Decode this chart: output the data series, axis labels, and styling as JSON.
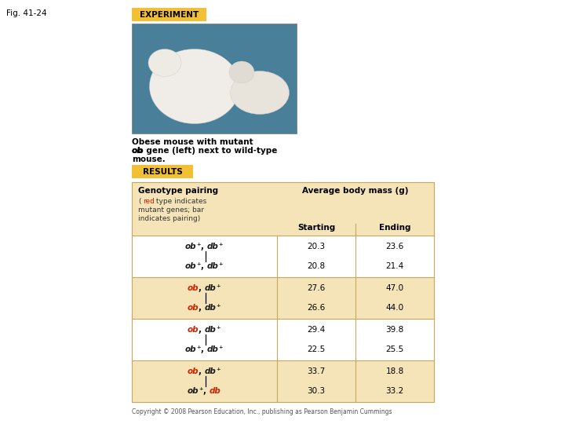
{
  "fig_label": "Fig. 41-24",
  "experiment_label": "EXPERIMENT",
  "results_label": "RESULTS",
  "caption_line1": "Obese mouse with mutant",
  "caption_line2": "ob gene (left) next to wild-type",
  "caption_line3": "mouse.",
  "label_bg_color": "#F2C035",
  "table_bg_light": "#FDF0D0",
  "table_bg_dark": "#F5E4B8",
  "table_border_color": "#C8A860",
  "white_row": "#FFFFFF",
  "copyright": "Copyright © 2008 Pearson Education, Inc., publishing as Pearson Benjamin Cummings",
  "col_header_starting": "Starting",
  "col_header_ending": "Ending",
  "col_header_genotype": "Genotype pairing",
  "col_header_avg": "Average body mass (g)",
  "col_note_1": "(red  type indicates",
  "col_note_2": "mutant genes; bar",
  "col_note_3": "indicates pairing)",
  "img_bg_color": "#4A7F9A",
  "rows": [
    {
      "top_parts": [
        {
          "text": "ob",
          "color": "#1a1a1a",
          "italic": true
        },
        {
          "text": "⁺",
          "color": "#1a1a1a",
          "italic": false
        },
        {
          "text": ", ",
          "color": "#1a1a1a",
          "italic": false
        },
        {
          "text": "db",
          "color": "#1a1a1a",
          "italic": true
        },
        {
          "text": "⁺",
          "color": "#1a1a1a",
          "italic": false
        }
      ],
      "bot_parts": [
        {
          "text": "ob",
          "color": "#1a1a1a",
          "italic": true
        },
        {
          "text": "⁺",
          "color": "#1a1a1a",
          "italic": false
        },
        {
          "text": ", ",
          "color": "#1a1a1a",
          "italic": false
        },
        {
          "text": "db",
          "color": "#1a1a1a",
          "italic": true
        },
        {
          "text": "⁺",
          "color": "#1a1a1a",
          "italic": false
        }
      ],
      "s_top": "20.3",
      "e_top": "23.6",
      "s_bot": "20.8",
      "e_bot": "21.4",
      "bg": "white"
    },
    {
      "top_parts": [
        {
          "text": "ob",
          "color": "#CC2200",
          "italic": true
        },
        {
          "text": ", ",
          "color": "#1a1a1a",
          "italic": false
        },
        {
          "text": "db",
          "color": "#1a1a1a",
          "italic": true
        },
        {
          "text": "⁺",
          "color": "#1a1a1a",
          "italic": false
        }
      ],
      "bot_parts": [
        {
          "text": "ob",
          "color": "#CC2200",
          "italic": true
        },
        {
          "text": ", ",
          "color": "#1a1a1a",
          "italic": false
        },
        {
          "text": "db",
          "color": "#1a1a1a",
          "italic": true
        },
        {
          "text": "⁺",
          "color": "#1a1a1a",
          "italic": false
        }
      ],
      "s_top": "27.6",
      "e_top": "47.0",
      "s_bot": "26.6",
      "e_bot": "44.0",
      "bg": "dark"
    },
    {
      "top_parts": [
        {
          "text": "ob",
          "color": "#CC2200",
          "italic": true
        },
        {
          "text": ", ",
          "color": "#1a1a1a",
          "italic": false
        },
        {
          "text": "db",
          "color": "#1a1a1a",
          "italic": true
        },
        {
          "text": "⁺",
          "color": "#1a1a1a",
          "italic": false
        }
      ],
      "bot_parts": [
        {
          "text": "ob",
          "color": "#1a1a1a",
          "italic": true
        },
        {
          "text": "⁺",
          "color": "#1a1a1a",
          "italic": false
        },
        {
          "text": ", ",
          "color": "#1a1a1a",
          "italic": false
        },
        {
          "text": "db",
          "color": "#1a1a1a",
          "italic": true
        },
        {
          "text": "⁺",
          "color": "#1a1a1a",
          "italic": false
        }
      ],
      "s_top": "29.4",
      "e_top": "39.8",
      "s_bot": "22.5",
      "e_bot": "25.5",
      "bg": "white"
    },
    {
      "top_parts": [
        {
          "text": "ob",
          "color": "#CC2200",
          "italic": true
        },
        {
          "text": ", ",
          "color": "#1a1a1a",
          "italic": false
        },
        {
          "text": "db",
          "color": "#1a1a1a",
          "italic": true
        },
        {
          "text": "⁺",
          "color": "#1a1a1a",
          "italic": false
        }
      ],
      "bot_parts": [
        {
          "text": "ob",
          "color": "#1a1a1a",
          "italic": true
        },
        {
          "text": "⁺",
          "color": "#1a1a1a",
          "italic": false
        },
        {
          "text": ", ",
          "color": "#1a1a1a",
          "italic": false
        },
        {
          "text": "db",
          "color": "#CC2200",
          "italic": true
        }
      ],
      "s_top": "33.7",
      "e_top": "18.8",
      "s_bot": "30.3",
      "e_bot": "33.2",
      "bg": "dark"
    }
  ]
}
